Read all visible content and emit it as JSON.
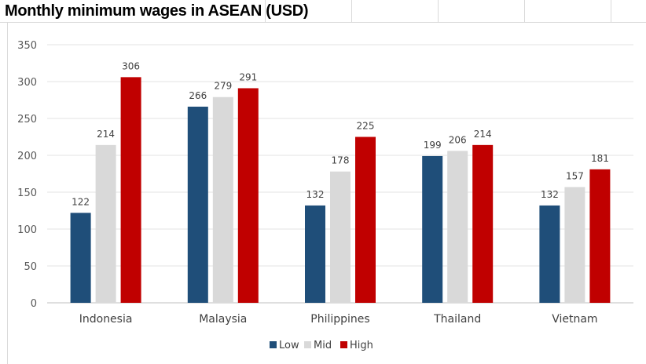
{
  "title": "Monthly minimum wages in ASEAN (USD)",
  "chart_data": {
    "type": "bar",
    "title": "Monthly minimum wages in ASEAN (USD)",
    "xlabel": "",
    "ylabel": "",
    "categories": [
      "Indonesia",
      "Malaysia",
      "Philippines",
      "Thailand",
      "Vietnam"
    ],
    "series": [
      {
        "name": "Low",
        "color": "#1f4e79",
        "values": [
          122,
          266,
          132,
          199,
          132
        ]
      },
      {
        "name": "Mid",
        "color": "#d9d9d9",
        "values": [
          214,
          279,
          178,
          206,
          157
        ]
      },
      {
        "name": "High",
        "color": "#c00000",
        "values": [
          306,
          291,
          225,
          214,
          181
        ]
      }
    ],
    "ylim": [
      0,
      350
    ],
    "yticks": [
      0,
      50,
      100,
      150,
      200,
      250,
      300,
      350
    ],
    "grid": true,
    "legend_position": "bottom",
    "data_labels": true
  }
}
